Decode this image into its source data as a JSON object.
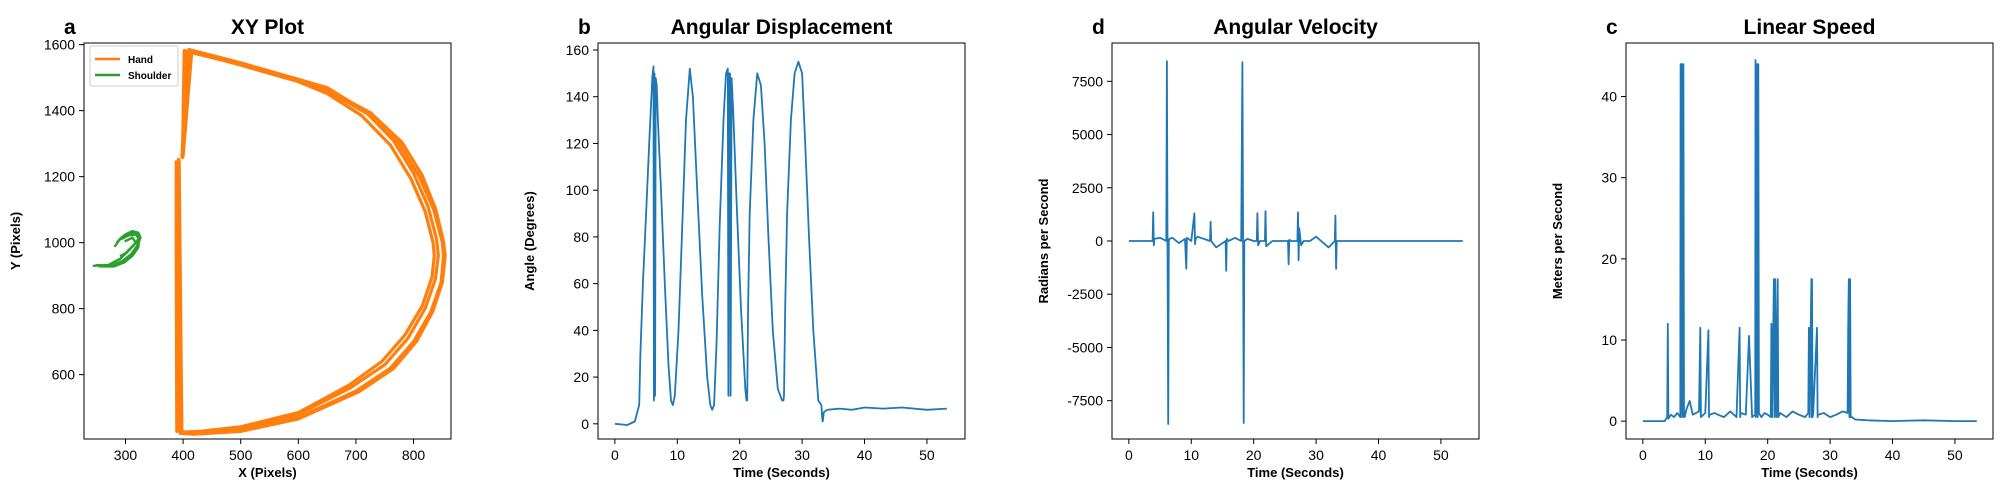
{
  "chart_data": [
    {
      "panel": "a",
      "type": "line",
      "title": "XY Plot",
      "xlabel": "X (Pixels)",
      "ylabel": "Y (Pixels)",
      "xlim": [
        228,
        865
      ],
      "ylim": [
        405,
        1605
      ],
      "xticks": [
        300,
        400,
        500,
        600,
        700,
        800
      ],
      "yticks": [
        600,
        800,
        1000,
        1200,
        1400,
        1600
      ],
      "legend": {
        "placement": "top-left",
        "entries": [
          "Hand",
          "Shoulder"
        ]
      },
      "series": [
        {
          "name": "Hand",
          "color": "#ff7f0e",
          "loops": [
            {
              "x": [
                399,
                405,
                500,
                600,
                650,
                720,
                775,
                810,
                835,
                850,
                852,
                848,
                830,
                800,
                760,
                700,
                600,
                500,
                420,
                395,
                392
              ],
              "y": [
                1260,
                1580,
                1540,
                1490,
                1460,
                1390,
                1300,
                1200,
                1100,
                1000,
                960,
                880,
                790,
                700,
                620,
                550,
                470,
                430,
                420,
                422,
                1250
              ]
            },
            {
              "x": [
                398,
                410,
                500,
                600,
                650,
                715,
                765,
                800,
                825,
                840,
                843,
                838,
                820,
                790,
                750,
                690,
                600,
                500,
                425,
                396,
                392
              ],
              "y": [
                1260,
                1585,
                1545,
                1495,
                1470,
                1400,
                1310,
                1210,
                1110,
                1010,
                960,
                890,
                800,
                710,
                630,
                560,
                480,
                438,
                425,
                425,
                1250
              ]
            },
            {
              "x": [
                400,
                415,
                500,
                600,
                650,
                710,
                760,
                795,
                820,
                834,
                836,
                832,
                815,
                785,
                745,
                688,
                600,
                500,
                430,
                398,
                393
              ],
              "y": [
                1262,
                1578,
                1538,
                1488,
                1452,
                1385,
                1295,
                1195,
                1095,
                1000,
                960,
                895,
                808,
                720,
                640,
                568,
                485,
                442,
                428,
                426,
                1250
              ]
            },
            {
              "x": [
                399,
                402,
                500,
                600,
                650,
                725,
                780,
                815,
                838,
                852,
                855,
                850,
                833,
                805,
                765,
                705,
                600,
                500,
                418,
                395,
                392
              ],
              "y": [
                1258,
                1582,
                1542,
                1492,
                1464,
                1394,
                1304,
                1204,
                1104,
                1004,
                960,
                880,
                790,
                700,
                618,
                548,
                466,
                428,
                420,
                423,
                1252
              ]
            },
            {
              "x": [
                392,
                392,
                389,
                388,
                388
              ],
              "y": [
                1250,
                430,
                428,
                1000,
                1245
              ]
            }
          ]
        },
        {
          "name": "Shoulder",
          "color": "#2ca02c",
          "loops": [
            {
              "x": [
                245,
                270,
                290,
                305,
                318,
                325,
                322,
                312,
                300,
                290,
                282
              ],
              "y": [
                930,
                932,
                950,
                975,
                1000,
                1020,
                1030,
                1035,
                1025,
                1010,
                990
              ]
            },
            {
              "x": [
                250,
                275,
                295,
                310,
                320,
                326,
                320,
                308,
                296,
                286
              ],
              "y": [
                932,
                930,
                945,
                965,
                990,
                1015,
                1028,
                1030,
                1020,
                1002
              ]
            },
            {
              "x": [
                255,
                280,
                298,
                312,
                322,
                324,
                318,
                305,
                294
              ],
              "y": [
                928,
                928,
                940,
                960,
                985,
                1010,
                1025,
                1022,
                1012
              ]
            },
            {
              "x": [
                292,
                300,
                310,
                318,
                312,
                300
              ],
              "y": [
                960,
                968,
                985,
                1000,
                1015,
                1005
              ]
            }
          ]
        }
      ]
    },
    {
      "panel": "b",
      "type": "line",
      "title": "Angular Displacement",
      "xlabel": "Time (Seconds)",
      "ylabel": "Angle (Degrees)",
      "xlim": [
        -2.7,
        56.1
      ],
      "ylim": [
        -6.5,
        163
      ],
      "xticks": [
        0,
        10,
        20,
        30,
        40,
        50
      ],
      "yticks": [
        0,
        20,
        40,
        60,
        80,
        100,
        120,
        140,
        160
      ],
      "series": [
        {
          "color": "#1f77b4",
          "x": [
            0,
            2,
            3.2,
            3.9,
            4.1,
            4.5,
            5.0,
            5.5,
            6.0,
            6.2,
            6.25,
            6.35,
            6.45,
            6.55,
            6.7,
            6.9,
            7.4,
            8.0,
            8.6,
            9.0,
            9.3,
            9.6,
            10.2,
            10.8,
            11.4,
            12.0,
            12.5,
            13.2,
            14.0,
            14.8,
            15.3,
            15.6,
            15.9,
            16.3,
            16.8,
            17.4,
            17.8,
            18.1,
            18.2,
            18.3,
            18.45,
            18.55,
            18.7,
            18.95,
            19.5,
            20.2,
            20.9,
            21.1,
            21.2,
            21.35,
            21.6,
            22.2,
            22.8,
            23.4,
            24.0,
            24.6,
            25.3,
            26.1,
            26.8,
            27.0,
            27.1,
            27.3,
            27.6,
            28.2,
            28.8,
            29.4,
            30.0,
            30.5,
            31.1,
            31.8,
            32.6,
            33.1,
            33.2,
            33.3,
            33.5,
            34,
            36,
            38,
            40,
            43,
            46,
            50,
            53.2
          ],
          "y": [
            0,
            -0.5,
            1,
            8,
            30,
            60,
            90,
            120,
            148,
            153,
            10,
            150,
            12,
            148,
            145,
            130,
            100,
            60,
            25,
            10,
            8,
            12,
            40,
            85,
            130,
            152,
            140,
            100,
            55,
            20,
            8,
            6,
            8,
            35,
            85,
            130,
            150,
            152,
            12,
            150,
            150,
            12,
            148,
            135,
            95,
            50,
            15,
            10,
            10,
            50,
            90,
            130,
            150,
            145,
            120,
            80,
            40,
            15,
            10,
            10,
            12,
            50,
            90,
            130,
            150,
            155,
            150,
            120,
            80,
            40,
            10,
            8,
            3,
            1,
            5,
            6,
            6.5,
            6,
            7,
            6.5,
            7,
            6,
            6.5
          ]
        }
      ]
    },
    {
      "panel": "d",
      "type": "line",
      "title": "Angular Velocity",
      "xlabel": "Time (Seconds)",
      "ylabel": "Radians per Second",
      "xlim": [
        -2.7,
        56.1
      ],
      "ylim": [
        -9300,
        9300
      ],
      "xticks": [
        0,
        10,
        20,
        30,
        40,
        50
      ],
      "yticks": [
        -7500,
        -5000,
        -2500,
        0,
        2500,
        5000,
        7500
      ],
      "series": [
        {
          "color": "#1f77b4",
          "x": [
            0,
            3.8,
            3.9,
            4.0,
            4.1,
            5,
            6.0,
            6.1,
            6.2,
            6.3,
            6.4,
            6.5,
            7,
            8,
            9,
            9.2,
            9.3,
            10,
            10.5,
            10.6,
            10.7,
            11,
            13,
            13.1,
            13.2,
            14,
            15.5,
            15.6,
            15.7,
            16,
            17,
            18,
            18.2,
            18.3,
            18.4,
            18.5,
            19,
            20,
            20.5,
            20.6,
            20.7,
            21,
            21.8,
            21.9,
            22.0,
            23,
            25.5,
            25.6,
            25.7,
            26,
            27.0,
            27.1,
            27.2,
            27.3,
            27.6,
            28,
            29,
            30,
            32,
            33.0,
            33.1,
            33.2,
            33.3,
            33.5,
            40,
            45,
            53.5
          ],
          "y": [
            0,
            0,
            1350,
            -200,
            100,
            150,
            0,
            8450,
            0,
            -8600,
            0,
            100,
            150,
            -100,
            100,
            -1300,
            150,
            0,
            1300,
            -150,
            100,
            200,
            0,
            900,
            0,
            -300,
            0,
            -1400,
            100,
            0,
            150,
            0,
            8400,
            0,
            -8550,
            0,
            100,
            0,
            0,
            1300,
            -200,
            0,
            0,
            1400,
            -250,
            0,
            0,
            -1100,
            50,
            0,
            0,
            1350,
            -900,
            600,
            -200,
            0,
            0,
            200,
            -300,
            0,
            1200,
            -1300,
            0,
            0,
            0,
            0,
            0
          ]
        }
      ]
    },
    {
      "panel": "c",
      "type": "line",
      "title": "Linear Speed",
      "xlabel": "Time (Seconds)",
      "ylabel": "Meters per Second",
      "xlim": [
        -2.7,
        56.1
      ],
      "ylim": [
        -2.2,
        46.6
      ],
      "xticks": [
        0,
        10,
        20,
        30,
        40,
        50
      ],
      "yticks": [
        0,
        10,
        20,
        30,
        40
      ],
      "series": [
        {
          "color": "#1f77b4",
          "x": [
            0,
            3.5,
            3.9,
            4.0,
            4.1,
            4.5,
            5.0,
            5.5,
            6.0,
            6.05,
            6.1,
            6.2,
            6.3,
            6.35,
            6.4,
            6.5,
            6.6,
            6.7,
            7.0,
            7.5,
            8.0,
            8.5,
            9.0,
            9.2,
            9.3,
            10.0,
            10.5,
            10.6,
            10.7,
            11.5,
            12.0,
            13.0,
            14.0,
            15.0,
            15.5,
            15.6,
            15.7,
            16.5,
            17.0,
            17.5,
            18.0,
            18.05,
            18.1,
            18.2,
            18.3,
            18.35,
            18.4,
            18.5,
            18.6,
            19.0,
            19.5,
            20.0,
            20.5,
            20.6,
            20.7,
            21.0,
            21.1,
            21.2,
            21.4,
            21.6,
            21.7,
            22.0,
            23.0,
            24.0,
            25.0,
            26.0,
            26.5,
            26.6,
            26.7,
            27.0,
            27.05,
            27.1,
            27.2,
            27.3,
            27.9,
            28.0,
            28.1,
            29.0,
            30.0,
            31.0,
            32.0,
            32.8,
            32.9,
            33.0,
            33.1,
            33.2,
            33.3,
            33.5,
            34,
            36,
            40,
            45,
            50,
            53.5
          ],
          "y": [
            0,
            0,
            0.5,
            12,
            0.3,
            0.8,
            0.5,
            1.0,
            0.5,
            44,
            0.5,
            44,
            1,
            44,
            0.5,
            44,
            1,
            0.5,
            1.5,
            2.5,
            0.8,
            1.0,
            1.2,
            11.5,
            0.5,
            1.0,
            11.2,
            0.5,
            0.8,
            1.0,
            0.8,
            0.5,
            1.2,
            0.5,
            11.5,
            0.5,
            1.0,
            0.8,
            10.5,
            0.5,
            0.8,
            44.5,
            0.5,
            44,
            1,
            44,
            0.5,
            44,
            1,
            0.5,
            1.0,
            0.8,
            0.5,
            12,
            0.5,
            17.5,
            0.5,
            17.5,
            0.5,
            17.5,
            0.5,
            1.0,
            0.5,
            1.2,
            0.8,
            0.5,
            1.0,
            11.5,
            0.5,
            17.5,
            0.5,
            17.5,
            0.5,
            1.0,
            11.5,
            0.5,
            0.8,
            1.0,
            0.5,
            0.8,
            1.2,
            1.0,
            11.5,
            17.5,
            0.5,
            17.5,
            0.5,
            0.5,
            0.2,
            0.1,
            0,
            0.1,
            0,
            0
          ]
        }
      ]
    }
  ]
}
